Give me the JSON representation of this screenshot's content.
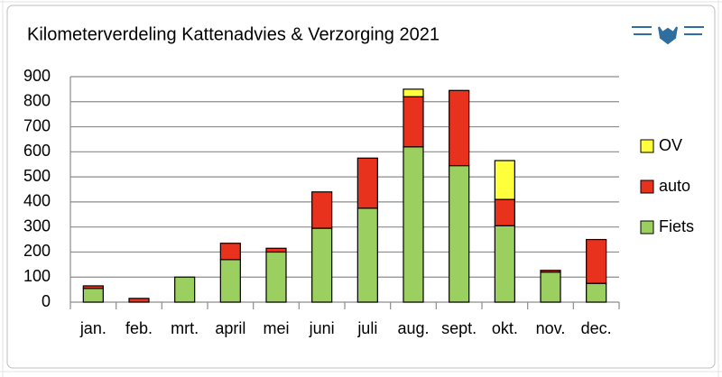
{
  "chart_data": {
    "type": "stacked_bar",
    "title": "Kilometerverdeling Kattenadvies & Verzorging 2021",
    "categories": [
      "jan.",
      "feb.",
      "mrt.",
      "april",
      "mei",
      "juni",
      "juli",
      "aug.",
      "sept.",
      "okt.",
      "nov.",
      "dec."
    ],
    "series": [
      {
        "name": "Fiets",
        "color": "#9bcf5f",
        "values": [
          55,
          0,
          100,
          170,
          200,
          295,
          375,
          620,
          545,
          305,
          120,
          75
        ]
      },
      {
        "name": "auto",
        "color": "#e8321e",
        "values": [
          10,
          15,
          0,
          65,
          15,
          145,
          200,
          200,
          300,
          105,
          7,
          175
        ]
      },
      {
        "name": "OV",
        "color": "#ffff3c",
        "values": [
          0,
          0,
          0,
          0,
          0,
          0,
          0,
          30,
          0,
          155,
          0,
          0
        ]
      }
    ],
    "ylim": [
      0,
      900
    ],
    "yticks": [
      0,
      100,
      200,
      300,
      400,
      500,
      600,
      700,
      800,
      900
    ],
    "grid": true,
    "legend": "right"
  }
}
